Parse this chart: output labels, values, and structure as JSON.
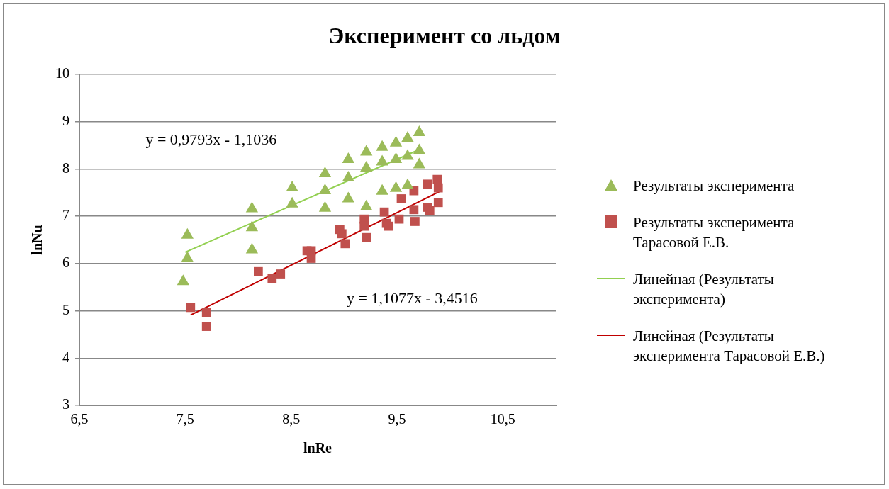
{
  "chart_data": {
    "type": "scatter",
    "title": "Эксперимент со льдом",
    "xlabel": "lnRe",
    "ylabel": "lnNu",
    "xlim": [
      6.5,
      11
    ],
    "xticks": [
      {
        "value": 6.5,
        "label": "6,5"
      },
      {
        "value": 7.5,
        "label": "7,5"
      },
      {
        "value": 8.5,
        "label": "8,5"
      },
      {
        "value": 9.5,
        "label": "9,5"
      },
      {
        "value": 10.5,
        "label": "10,5"
      }
    ],
    "ylim": [
      3,
      10
    ],
    "yticks": [
      3,
      4,
      5,
      6,
      7,
      8,
      9,
      10
    ],
    "grid": "y",
    "legend": "right",
    "series": [
      {
        "name": "Результаты эксперимента",
        "marker": "triangle",
        "color": "#9bbb59",
        "x": [
          7.52,
          7.52,
          7.48,
          8.13,
          8.13,
          8.13,
          8.51,
          8.51,
          8.82,
          8.82,
          8.82,
          9.04,
          9.04,
          9.04,
          9.21,
          9.21,
          9.21,
          9.36,
          9.36,
          9.36,
          9.49,
          9.49,
          9.49,
          9.6,
          9.6,
          9.6,
          9.71,
          9.71,
          9.71
        ],
        "values": [
          6.6,
          6.11,
          5.62,
          7.16,
          6.76,
          6.29,
          7.6,
          7.26,
          7.9,
          7.54,
          7.17,
          8.2,
          7.81,
          7.37,
          8.36,
          8.02,
          7.2,
          8.46,
          8.15,
          7.53,
          8.55,
          8.2,
          7.59,
          8.65,
          8.27,
          7.65,
          8.77,
          8.39,
          8.09
        ]
      },
      {
        "name": "Результаты эксперимента Тарасовой Е.В.",
        "marker": "square",
        "color": "#c0504d",
        "x": [
          7.55,
          7.7,
          7.7,
          8.19,
          8.32,
          8.4,
          8.65,
          8.69,
          8.69,
          8.96,
          8.98,
          9.01,
          9.19,
          9.19,
          9.21,
          9.38,
          9.4,
          9.42,
          9.52,
          9.54,
          9.66,
          9.66,
          9.67,
          9.79,
          9.79,
          9.81,
          9.88,
          9.89,
          9.89
        ],
        "values": [
          5.07,
          4.96,
          4.67,
          5.83,
          5.68,
          5.78,
          6.27,
          6.27,
          6.11,
          6.72,
          6.63,
          6.42,
          6.94,
          6.79,
          6.55,
          7.09,
          6.85,
          6.79,
          6.94,
          7.37,
          7.54,
          7.14,
          6.89,
          7.68,
          7.19,
          7.12,
          7.78,
          7.6,
          7.29
        ]
      },
      {
        "name": "Линейная (Результаты эксперимента)",
        "type": "line",
        "marker": "none",
        "color": "#92d050",
        "x": [
          7.5,
          9.73
        ],
        "values": [
          6.24,
          8.43
        ]
      },
      {
        "name": "Линейная (Результаты эксперимента Тарасовой Е.В.)",
        "type": "line",
        "marker": "none",
        "color": "#c00000",
        "x": [
          7.55,
          9.9
        ],
        "values": [
          4.91,
          7.52
        ]
      }
    ],
    "annotations": [
      "y = 0,9793x - 1,1036",
      "y = 1,1077x - 3,4516"
    ]
  }
}
